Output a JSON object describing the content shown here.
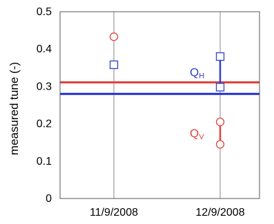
{
  "chart_data": {
    "type": "scatter",
    "title": "",
    "xlabel": "",
    "ylabel": "measured tune (-)",
    "ylim": [
      0,
      0.5
    ],
    "yticks": [
      "0",
      "0.1",
      "0.2",
      "0.3",
      "0.4",
      "0.5"
    ],
    "categories": [
      "11/9/2008",
      "12/9/2008"
    ],
    "grid": "vertical",
    "series": [
      {
        "marker": "circle",
        "color": "#e0413a",
        "points": [
          {
            "x": "11/9/2008",
            "y": 0.433
          },
          {
            "x": "12/9/2008",
            "y": 0.205
          },
          {
            "x": "12/9/2008",
            "y": 0.145
          }
        ]
      },
      {
        "marker": "square",
        "color": "#2f3fc4",
        "points": [
          {
            "x": "11/9/2008",
            "y": 0.358
          },
          {
            "x": "12/9/2008",
            "y": 0.38
          },
          {
            "x": "12/9/2008",
            "y": 0.298
          }
        ]
      }
    ],
    "reference_lines": [
      {
        "y": 0.311,
        "color": "#e0413a"
      },
      {
        "y": 0.28,
        "color": "#1f2fd0"
      }
    ],
    "annotations": [
      {
        "main": "Q",
        "sub": "H",
        "color": "#2f3fc4",
        "x": "12/9/2008",
        "y_from": 0.38,
        "y_to": 0.298
      },
      {
        "main": "Q",
        "sub": "V",
        "color": "#e0413a",
        "x": "12/9/2008",
        "y_from": 0.205,
        "y_to": 0.145
      }
    ]
  }
}
